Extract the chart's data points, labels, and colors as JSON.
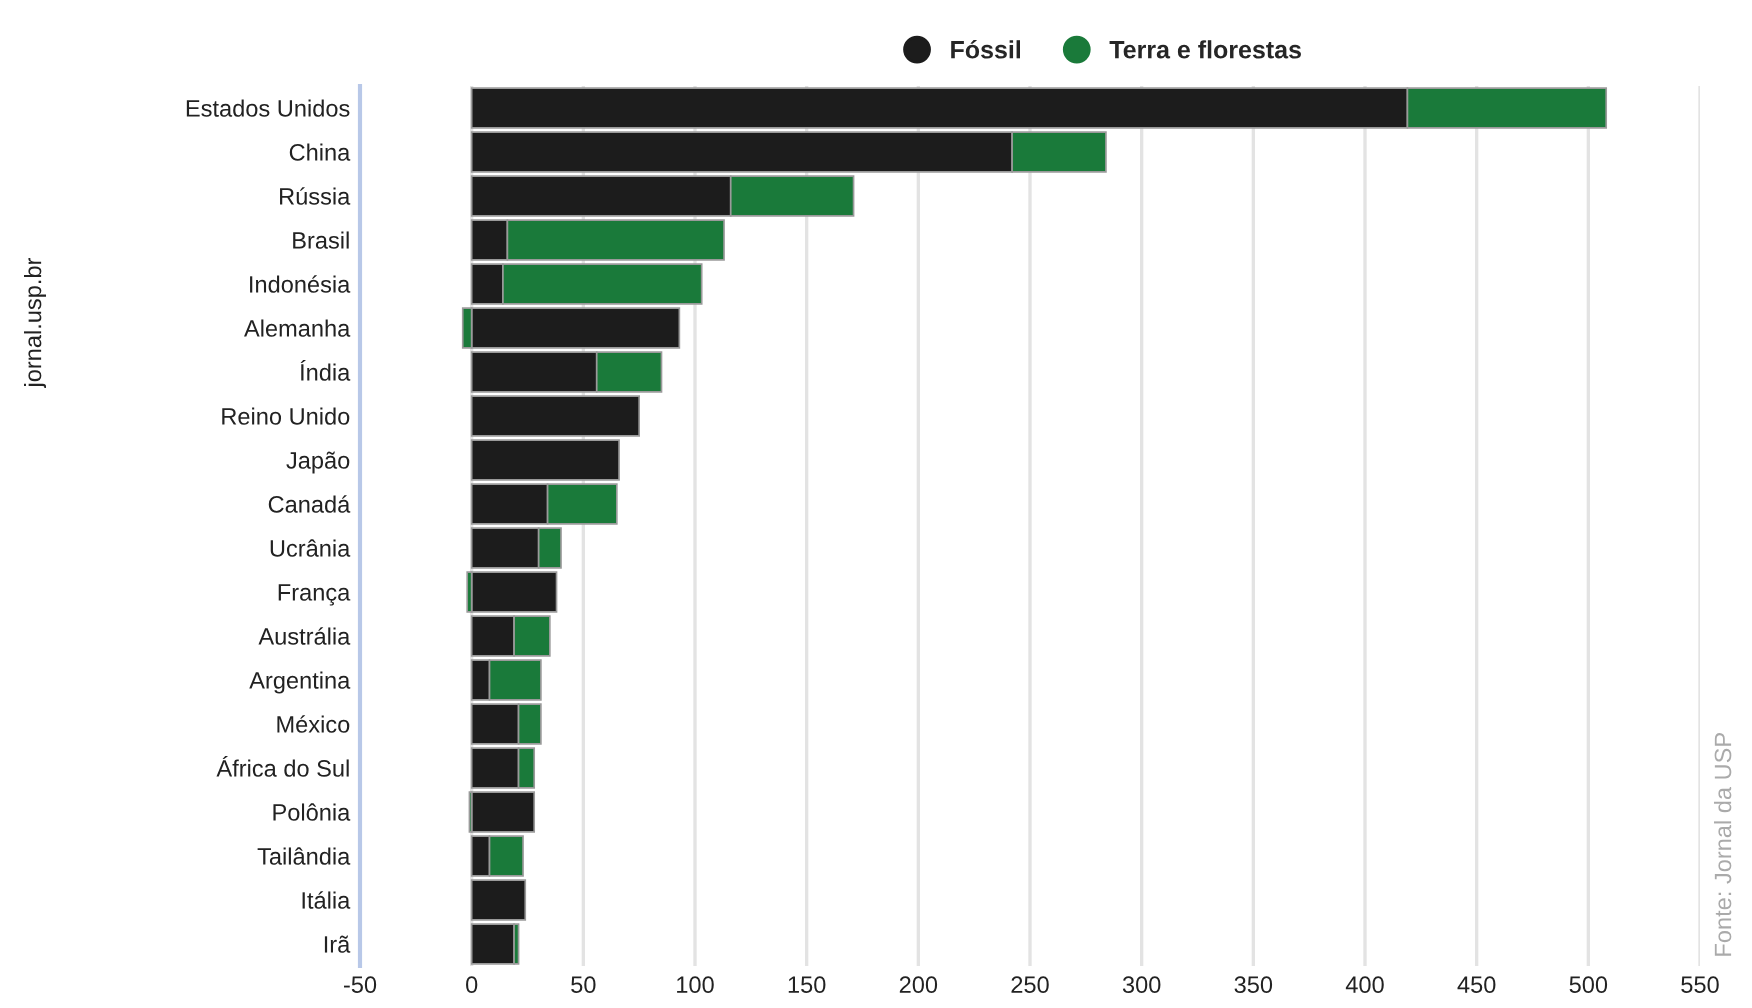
{
  "chart_data": {
    "type": "bar",
    "orientation": "horizontal",
    "stacked": true,
    "categories": [
      "Estados Unidos",
      "China",
      "Rússia",
      "Brasil",
      "Indonésia",
      "Alemanha",
      "Índia",
      "Reino Unido",
      "Japão",
      "Canadá",
      "Ucrânia",
      "França",
      "Austrália",
      "Argentina",
      "México",
      "África do Sul",
      "Polônia",
      "Tailândia",
      "Itália",
      "Irã"
    ],
    "series": [
      {
        "name": "Fóssil",
        "color": "#1c1c1c",
        "values": [
          419,
          242,
          116,
          16,
          14,
          93,
          56,
          75,
          66,
          34,
          30,
          38,
          19,
          8,
          21,
          21,
          28,
          8,
          24,
          19
        ]
      },
      {
        "name": "Terra e florestas",
        "color": "#1a7a3a",
        "values": [
          89,
          42,
          55,
          97,
          89,
          -4,
          29,
          null,
          null,
          31,
          10,
          -2,
          16,
          23,
          10,
          7,
          -1,
          15,
          null,
          2
        ]
      }
    ],
    "xlim": [
      -50,
      550
    ],
    "xticks": [
      -50,
      0,
      50,
      100,
      150,
      200,
      250,
      300,
      350,
      400,
      450,
      500,
      550
    ],
    "grid": "x",
    "legend": "top",
    "annotations": [
      "Fonte: Jornal da USP",
      "jornal.usp.br"
    ]
  }
}
